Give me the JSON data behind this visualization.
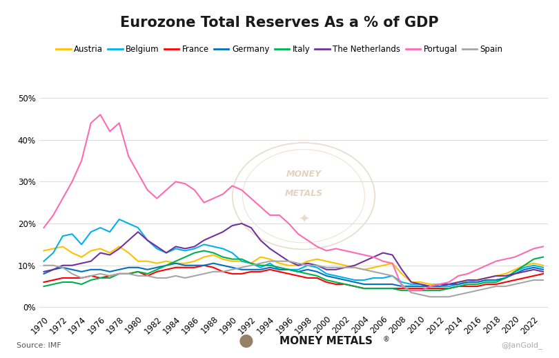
{
  "title": "Eurozone Total Reserves As a % of GDP",
  "source": "Source: IMF",
  "watermark_right": "@JanGold_",
  "years": [
    1970,
    1971,
    1972,
    1973,
    1974,
    1975,
    1976,
    1977,
    1978,
    1979,
    1980,
    1981,
    1982,
    1983,
    1984,
    1985,
    1986,
    1987,
    1988,
    1989,
    1990,
    1991,
    1992,
    1993,
    1994,
    1995,
    1996,
    1997,
    1998,
    1999,
    2000,
    2001,
    2002,
    2003,
    2004,
    2005,
    2006,
    2007,
    2008,
    2009,
    2010,
    2011,
    2012,
    2013,
    2014,
    2015,
    2016,
    2017,
    2018,
    2019,
    2020,
    2021,
    2022,
    2023
  ],
  "series": {
    "Austria": {
      "color": "#FFC000",
      "data": [
        13.5,
        14.0,
        14.5,
        13.0,
        12.0,
        13.5,
        14.0,
        13.0,
        14.5,
        13.0,
        11.0,
        11.0,
        10.5,
        11.0,
        10.5,
        10.5,
        11.0,
        12.0,
        12.5,
        11.5,
        11.0,
        11.0,
        10.5,
        12.0,
        11.5,
        10.5,
        10.0,
        10.0,
        11.0,
        11.5,
        11.0,
        10.5,
        10.0,
        9.5,
        9.0,
        9.5,
        10.0,
        10.5,
        8.0,
        6.0,
        6.0,
        5.5,
        5.5,
        5.5,
        6.0,
        6.0,
        6.5,
        7.0,
        7.5,
        8.0,
        9.0,
        10.0,
        10.5,
        10.0
      ]
    },
    "Belgium": {
      "color": "#00B0F0",
      "data": [
        11.0,
        13.0,
        17.0,
        17.5,
        15.0,
        18.0,
        19.0,
        18.0,
        21.0,
        20.0,
        19.0,
        16.0,
        14.0,
        13.0,
        14.0,
        13.5,
        14.0,
        15.0,
        14.5,
        14.0,
        13.0,
        11.0,
        10.5,
        9.5,
        10.5,
        9.0,
        9.0,
        9.0,
        10.0,
        9.5,
        8.0,
        7.5,
        7.0,
        6.5,
        6.5,
        7.0,
        7.0,
        7.5,
        6.0,
        5.5,
        5.5,
        5.0,
        5.0,
        5.0,
        5.5,
        6.0,
        6.0,
        6.5,
        6.5,
        7.0,
        8.5,
        9.5,
        10.0,
        9.5
      ]
    },
    "France": {
      "color": "#FF0000",
      "data": [
        6.0,
        6.5,
        7.0,
        7.0,
        7.0,
        7.5,
        7.0,
        7.5,
        8.0,
        8.0,
        8.5,
        7.5,
        8.5,
        9.0,
        9.5,
        9.5,
        9.5,
        10.0,
        9.5,
        8.5,
        8.0,
        8.0,
        8.5,
        8.5,
        9.0,
        8.5,
        8.0,
        7.5,
        7.0,
        7.0,
        6.0,
        5.5,
        5.5,
        5.0,
        4.5,
        4.5,
        4.5,
        4.5,
        4.5,
        4.5,
        4.5,
        4.5,
        4.5,
        4.5,
        5.0,
        5.0,
        5.0,
        5.5,
        5.5,
        6.0,
        6.5,
        7.0,
        7.5,
        8.0
      ]
    },
    "Germany": {
      "color": "#0070C0",
      "data": [
        8.0,
        9.0,
        9.5,
        9.0,
        8.5,
        9.0,
        9.0,
        8.5,
        9.0,
        9.5,
        9.5,
        9.0,
        9.5,
        10.0,
        10.5,
        10.0,
        10.0,
        10.0,
        10.5,
        10.0,
        9.5,
        9.0,
        9.0,
        9.0,
        9.5,
        9.0,
        9.0,
        8.5,
        9.0,
        8.5,
        7.5,
        7.0,
        6.5,
        6.0,
        5.5,
        5.5,
        5.5,
        5.5,
        5.0,
        5.0,
        5.0,
        5.0,
        5.0,
        5.5,
        5.5,
        6.0,
        6.0,
        6.5,
        6.5,
        7.0,
        8.0,
        9.0,
        9.5,
        9.0
      ]
    },
    "Italy": {
      "color": "#00B050",
      "data": [
        5.0,
        5.5,
        6.0,
        6.0,
        5.5,
        6.5,
        7.0,
        7.0,
        8.0,
        8.0,
        8.5,
        8.0,
        9.0,
        10.0,
        11.0,
        12.0,
        13.0,
        13.5,
        13.0,
        12.0,
        11.5,
        11.5,
        10.5,
        10.0,
        10.0,
        9.5,
        9.0,
        8.5,
        8.0,
        7.5,
        6.5,
        6.0,
        5.5,
        5.0,
        4.5,
        4.5,
        4.5,
        4.5,
        4.0,
        4.0,
        4.0,
        4.0,
        4.0,
        4.5,
        5.0,
        5.5,
        5.5,
        6.0,
        6.0,
        7.0,
        8.5,
        10.0,
        11.5,
        12.0
      ]
    },
    "The Netherlands": {
      "color": "#7030A0",
      "data": [
        8.5,
        9.0,
        10.0,
        10.0,
        10.5,
        11.0,
        13.0,
        12.5,
        14.0,
        16.0,
        18.0,
        16.0,
        14.5,
        13.0,
        14.5,
        14.0,
        14.5,
        16.0,
        17.0,
        18.0,
        19.5,
        20.0,
        19.0,
        16.0,
        14.0,
        12.5,
        11.0,
        10.0,
        10.5,
        10.0,
        9.0,
        9.0,
        9.5,
        10.0,
        11.0,
        12.0,
        13.0,
        12.5,
        9.0,
        6.0,
        5.5,
        5.0,
        5.5,
        5.5,
        6.0,
        6.5,
        6.5,
        7.0,
        7.5,
        7.5,
        8.0,
        8.5,
        9.0,
        8.5
      ]
    },
    "Portugal": {
      "color": "#FF69B4",
      "data": [
        19.0,
        22.0,
        26.0,
        30.0,
        35.0,
        44.0,
        46.0,
        42.0,
        44.0,
        36.0,
        32.0,
        28.0,
        26.0,
        28.0,
        30.0,
        29.5,
        28.0,
        25.0,
        26.0,
        27.0,
        29.0,
        28.0,
        26.0,
        24.0,
        22.0,
        22.0,
        20.0,
        17.5,
        16.0,
        14.5,
        13.5,
        14.0,
        13.5,
        13.0,
        12.5,
        12.0,
        11.0,
        10.5,
        5.0,
        4.0,
        4.0,
        5.0,
        5.5,
        6.0,
        7.5,
        8.0,
        9.0,
        10.0,
        11.0,
        11.5,
        12.0,
        13.0,
        14.0,
        14.5
      ]
    },
    "Spain": {
      "color": "#A6A6A6",
      "data": [
        10.0,
        10.0,
        9.5,
        8.0,
        7.0,
        7.5,
        8.0,
        7.5,
        8.0,
        8.0,
        7.5,
        7.5,
        7.0,
        7.0,
        7.5,
        7.0,
        7.5,
        8.0,
        8.5,
        8.5,
        9.0,
        9.5,
        10.0,
        10.5,
        11.0,
        11.0,
        11.0,
        10.5,
        10.0,
        10.0,
        9.5,
        9.5,
        9.5,
        9.5,
        9.0,
        8.5,
        8.0,
        7.5,
        5.5,
        3.5,
        3.0,
        2.5,
        2.5,
        2.5,
        3.0,
        3.5,
        4.0,
        4.5,
        5.0,
        5.0,
        5.5,
        6.0,
        6.5,
        6.5
      ]
    }
  },
  "yticks": [
    0,
    10,
    20,
    30,
    40,
    50
  ],
  "ytick_labels": [
    "0%",
    "10%",
    "20%",
    "30%",
    "40%",
    "50%"
  ],
  "ylim": [
    -1,
    52
  ],
  "background_color": "#FFFFFF",
  "grid_color": "#DDDDDD",
  "title_fontsize": 15,
  "legend_fontsize": 8.5,
  "tick_fontsize": 8.5
}
